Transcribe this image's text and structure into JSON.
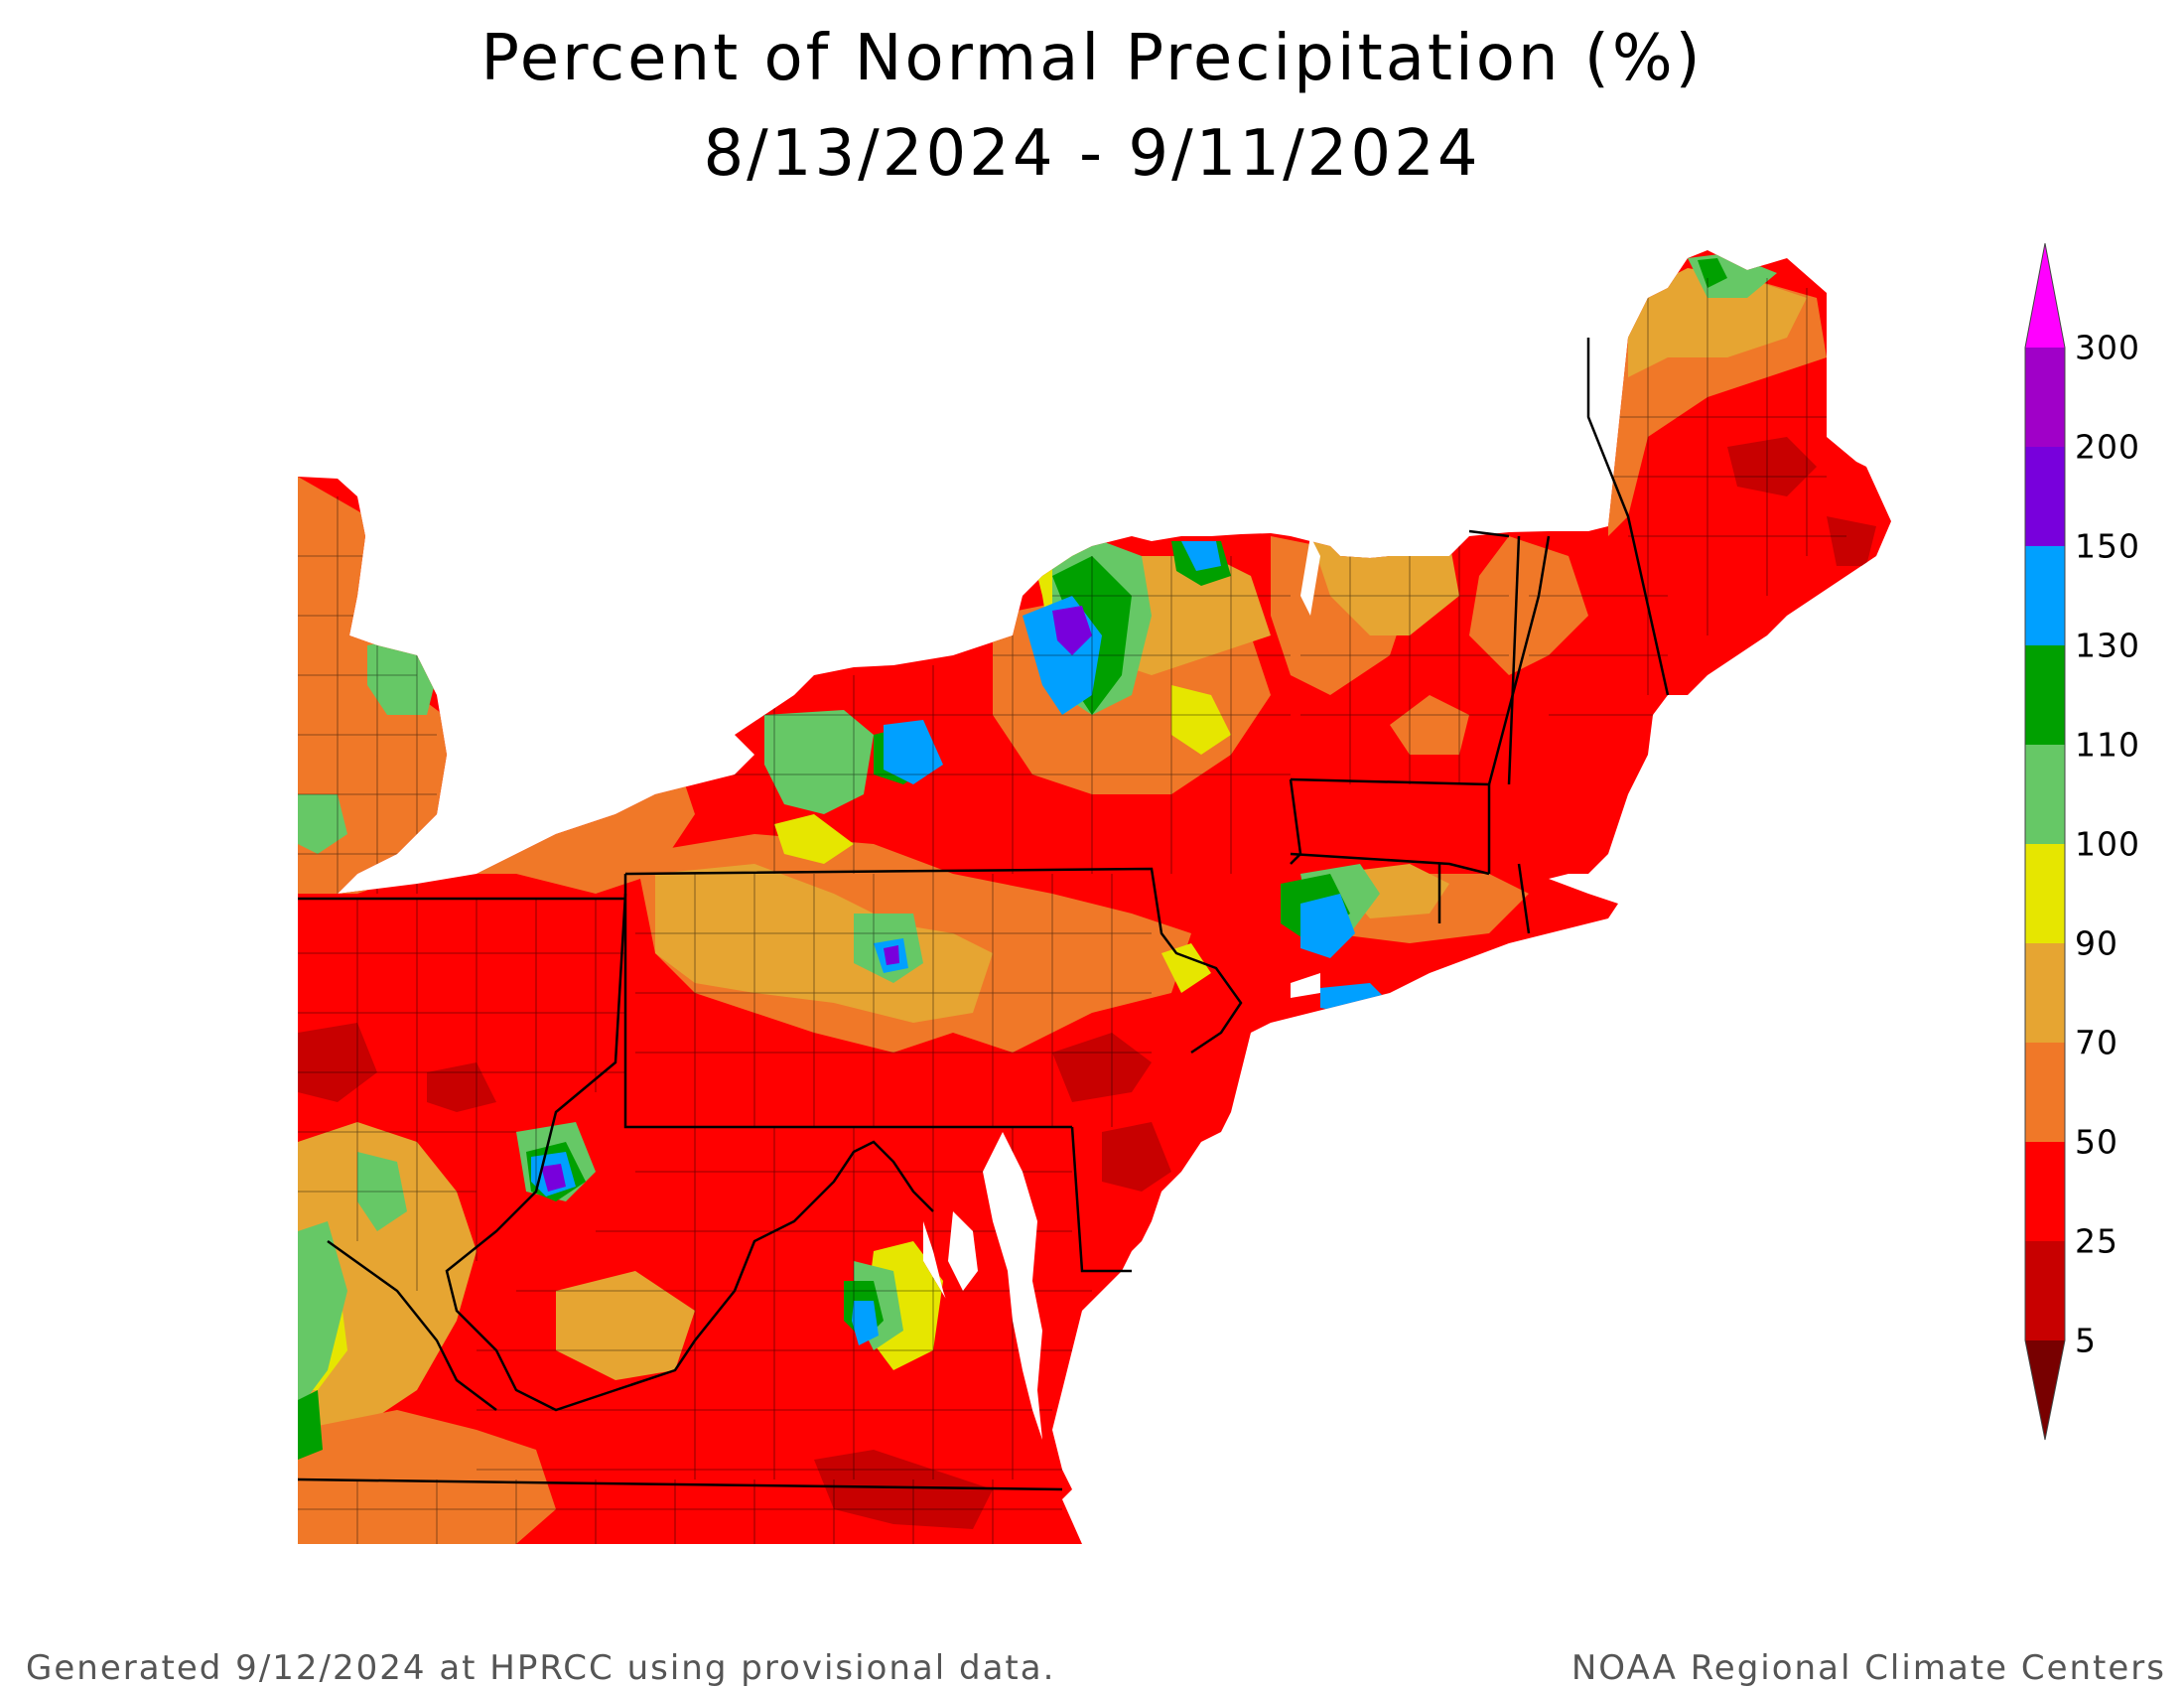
{
  "title": {
    "line1": "Percent of Normal Precipitation (%)",
    "line2": "8/13/2024 - 9/11/2024"
  },
  "legend": {
    "ticks": [
      "300",
      "200",
      "150",
      "130",
      "110",
      "100",
      "90",
      "70",
      "50",
      "25",
      "5"
    ],
    "colors": {
      "over_300": "#ff00ff",
      "200_300": "#a000c8",
      "150_200": "#7800dc",
      "130_150": "#00a0ff",
      "110_130": "#00a000",
      "100_110": "#66c866",
      "90_100": "#e6e600",
      "70_90": "#e6a532",
      "50_70": "#f07828",
      "25_50": "#ff0000",
      "5_25": "#c80000",
      "under_5": "#780000"
    }
  },
  "map": {
    "region": "Northeast United States",
    "background_color": "#ffffff",
    "boundary_color": "#000000"
  },
  "footer": {
    "left": "Generated 9/12/2024 at HPRCC using provisional data.",
    "right": "NOAA Regional Climate Centers"
  }
}
